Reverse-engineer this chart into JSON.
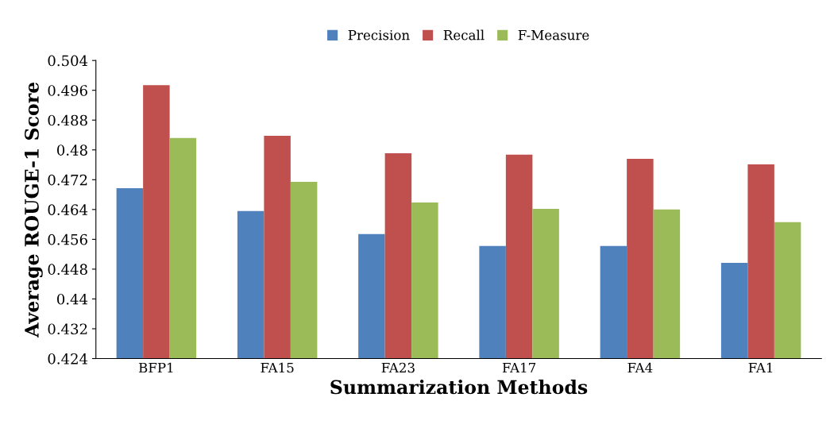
{
  "chart_data": {
    "type": "bar",
    "xlabel": "Summarization Methods",
    "ylabel": "Average ROUGE-1 Score",
    "categories": [
      "BFP1",
      "FA15",
      "FA23",
      "FA17",
      "FA4",
      "FA1"
    ],
    "series": [
      {
        "name": "Precision",
        "color": "#4f81bd",
        "values": [
          0.4697,
          0.4636,
          0.4574,
          0.4542,
          0.4542,
          0.4497
        ]
      },
      {
        "name": "Recall",
        "color": "#c0504d",
        "values": [
          0.4974,
          0.4838,
          0.4791,
          0.4787,
          0.4776,
          0.4761
        ]
      },
      {
        "name": "F-Measure",
        "color": "#9bbb59",
        "values": [
          0.4832,
          0.4714,
          0.4659,
          0.4642,
          0.464,
          0.4606
        ]
      }
    ],
    "ylim": [
      0.424,
      0.504
    ],
    "yticks": [
      0.424,
      0.432,
      0.44,
      0.448,
      0.456,
      0.464,
      0.472,
      0.48,
      0.488,
      0.496,
      0.504
    ],
    "grid": false,
    "legend": "top"
  }
}
